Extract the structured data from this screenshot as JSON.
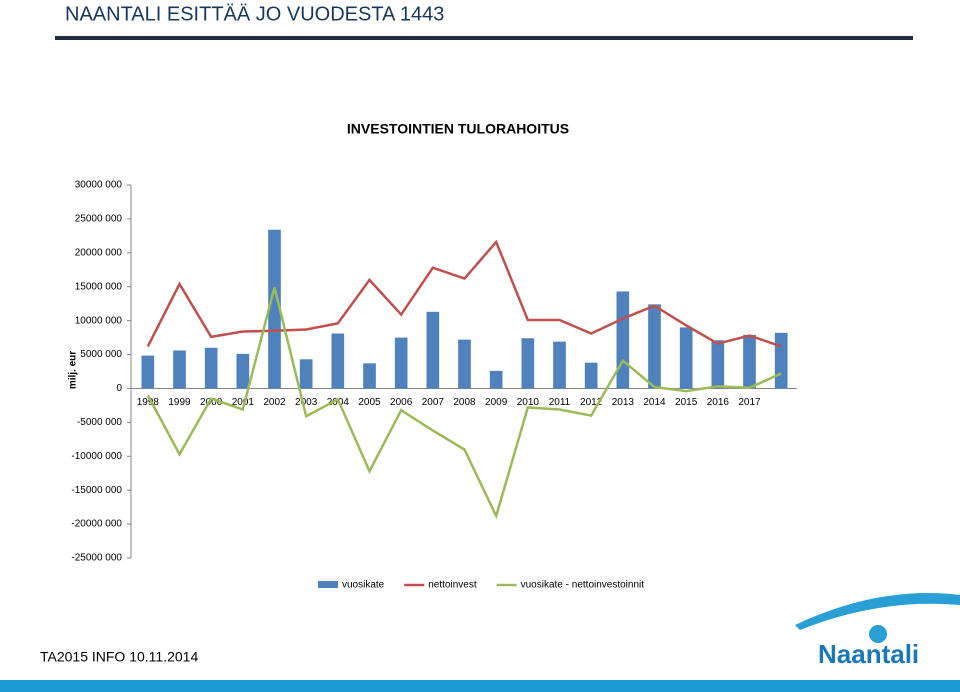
{
  "header": {
    "title": "NAANTALI ESITTÄÄ JO VUODESTA 1443"
  },
  "footer": {
    "text": "TA2015 INFO 10.11.2014",
    "logo": "Naantali"
  },
  "chart_data": {
    "type": "bar",
    "title": "INVESTOINTIEN TULORAHOITUS",
    "y_label": "milj. eur",
    "categories": [
      "1998",
      "1999",
      "2000",
      "2001",
      "2002",
      "2003",
      "2004",
      "2005",
      "2006",
      "2007",
      "2008",
      "2009",
      "2010",
      "2011",
      "2012",
      "2013",
      "2014",
      "2015",
      "2016",
      "2017",
      null
    ],
    "series": [
      {
        "name": "vuosikate",
        "type": "bar",
        "color": "#4f81bd",
        "values": [
          4850000,
          5600000,
          6000000,
          5100000,
          23400000,
          4300000,
          8100000,
          3700000,
          7500000,
          11300000,
          7200000,
          2600000,
          7400000,
          6900000,
          3800000,
          14300000,
          12400000,
          9000000,
          7100000,
          7900000,
          8200000
        ]
      },
      {
        "name": "nettoinvest",
        "type": "line",
        "color": "#c0504d",
        "values": [
          6200000,
          15400000,
          7600000,
          8400000,
          8500000,
          8700000,
          9600000,
          16000000,
          10900000,
          17800000,
          16200000,
          21600000,
          10100000,
          10100000,
          8100000,
          10300000,
          12200000,
          9300000,
          6600000,
          7800000,
          6200000
        ]
      },
      {
        "name": "vuosikate - nettoinvestoinnit",
        "type": "line",
        "color": "#9bbb59",
        "values": [
          -1000000,
          -9700000,
          -1500000,
          -3100000,
          14900000,
          -4100000,
          -1600000,
          -12200000,
          -3200000,
          -6200000,
          -9000000,
          -18800000,
          -2800000,
          -3100000,
          -4000000,
          4100000,
          200000,
          -400000,
          300000,
          100000,
          2200000
        ]
      }
    ],
    "ylim": [
      -25000000,
      30000000
    ],
    "yticks": [
      {
        "value": 30000000,
        "label": "30000 000"
      },
      {
        "value": 25000000,
        "label": "25000 000"
      },
      {
        "value": 20000000,
        "label": "20000 000"
      },
      {
        "value": 15000000,
        "label": "15000 000"
      },
      {
        "value": 10000000,
        "label": "10000 000"
      },
      {
        "value": 5000000,
        "label": "5000 000"
      },
      0,
      {
        "value": -5000000,
        "label": "-5000 000"
      },
      {
        "value": -10000000,
        "label": "-10000 000"
      },
      {
        "value": -15000000,
        "label": "-15000 000"
      },
      {
        "value": -20000000,
        "label": "-20000 000"
      },
      {
        "value": -25000000,
        "label": "-25000 000"
      }
    ],
    "grid": false,
    "legend": "bottom"
  }
}
